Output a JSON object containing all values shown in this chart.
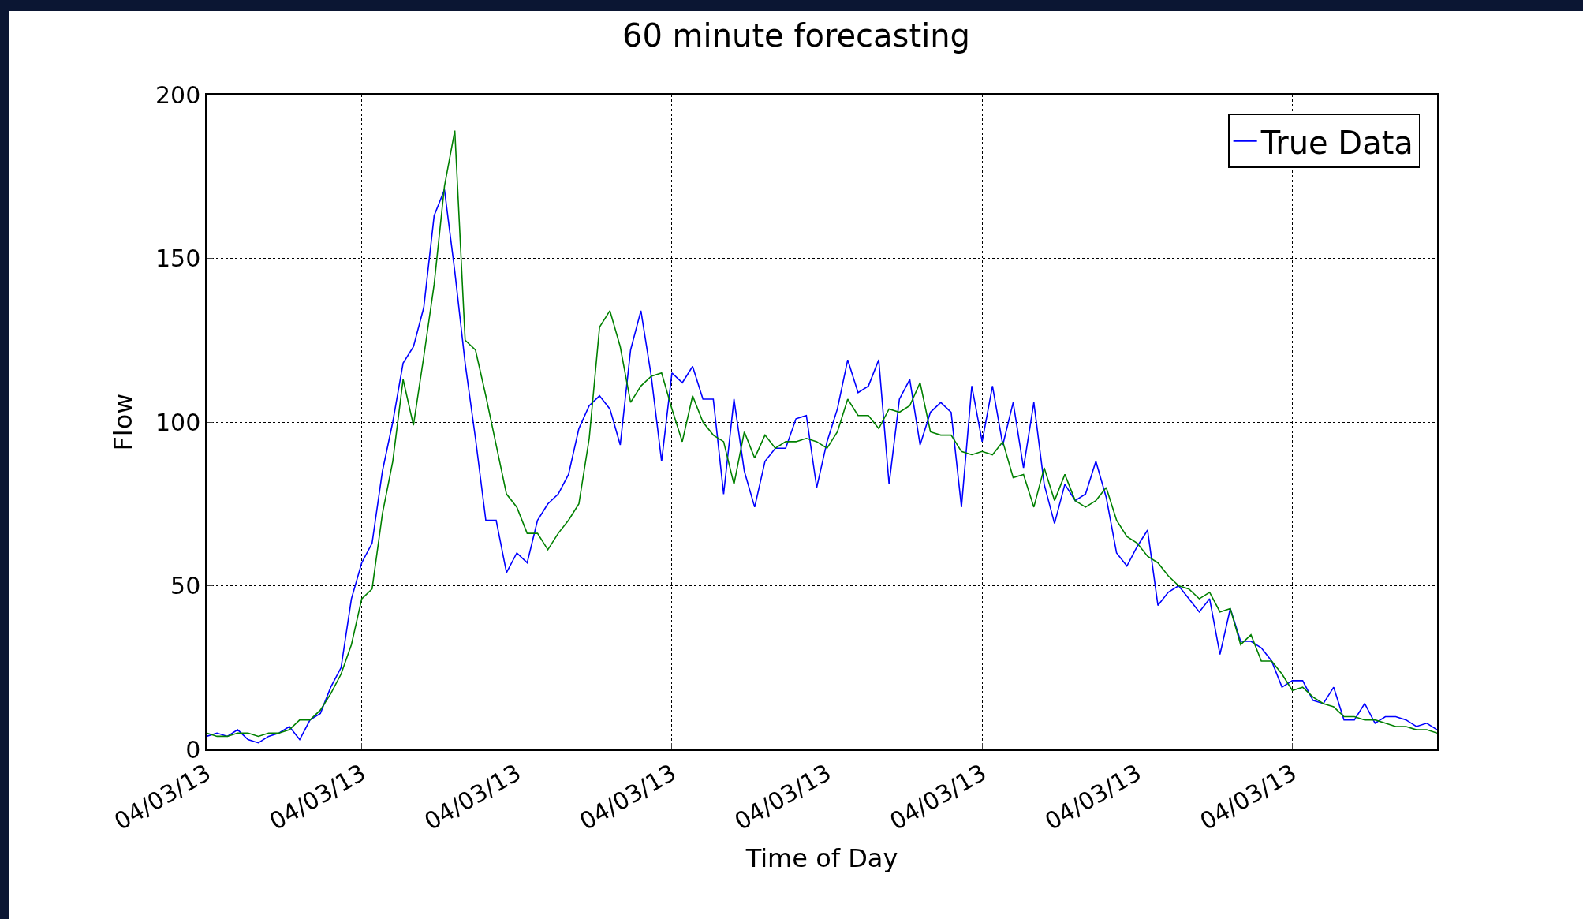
{
  "chart_data": {
    "type": "line",
    "title": "60 minute forecasting",
    "xlabel": "Time of Day",
    "ylabel": "Flow",
    "categories": [
      "04/03/13",
      null,
      null,
      null,
      null,
      null,
      null,
      null,
      null,
      null,
      null,
      null,
      null,
      null,
      null,
      "04/03/13",
      null,
      null,
      null,
      null,
      null,
      null,
      null,
      null,
      null,
      null,
      null,
      null,
      null,
      null,
      "04/03/13",
      null,
      null,
      null,
      null,
      null,
      null,
      null,
      null,
      null,
      null,
      null,
      null,
      null,
      null,
      "04/03/13",
      null,
      null,
      null,
      null,
      null,
      null,
      null,
      null,
      null,
      null,
      null,
      null,
      null,
      null,
      "04/03/13",
      null,
      null,
      null,
      null,
      null,
      null,
      null,
      null,
      null,
      null,
      null,
      null,
      null,
      null,
      "04/03/13",
      null,
      null,
      null,
      null,
      null,
      null,
      null,
      null,
      null,
      null,
      null,
      null,
      null,
      null,
      "04/03/13",
      null,
      null,
      null,
      null,
      null,
      null,
      null,
      null,
      null,
      null,
      null,
      null,
      null,
      null,
      "04/03/13",
      null,
      null,
      null,
      null,
      null,
      null,
      null,
      null,
      null,
      null,
      null,
      null,
      null,
      null
    ],
    "ylim": [
      0,
      200
    ],
    "yticks": [
      0,
      50,
      100,
      150,
      200
    ],
    "grid": true,
    "legend": "top right",
    "series": [
      {
        "name": "True Data",
        "color": "#0000ff",
        "values": [
          4,
          5,
          4,
          6,
          3,
          2,
          4,
          5,
          7,
          3,
          9,
          11,
          19,
          25,
          46,
          57,
          63,
          85,
          100,
          118,
          123,
          135,
          163,
          171,
          146,
          118,
          95,
          70,
          70,
          54,
          60,
          57,
          70,
          75,
          78,
          84,
          98,
          105,
          108,
          104,
          93,
          122,
          134,
          114,
          88,
          115,
          112,
          117,
          107,
          107,
          78,
          107,
          85,
          74,
          88,
          92,
          92,
          101,
          102,
          80,
          94,
          104,
          119,
          109,
          111,
          119,
          81,
          107,
          113,
          93,
          103,
          106,
          103,
          74,
          111,
          94,
          111,
          93,
          106,
          86,
          106,
          81,
          69,
          81,
          76,
          78,
          88,
          77,
          60,
          56,
          62,
          67,
          44,
          48,
          50,
          46,
          42,
          46,
          29,
          43,
          33,
          33,
          31,
          27,
          19,
          21,
          21,
          15,
          14,
          19,
          9,
          9,
          14,
          8,
          10,
          10,
          9,
          7,
          8,
          6
        ]
      },
      {
        "color": "#008000",
        "values": [
          5,
          4,
          4,
          5,
          5,
          4,
          5,
          5,
          6,
          9,
          9,
          12,
          17,
          23,
          32,
          46,
          49,
          72,
          88,
          113,
          99,
          120,
          142,
          172,
          189,
          125,
          122,
          108,
          93,
          78,
          74,
          66,
          66,
          61,
          66,
          70,
          75,
          95,
          129,
          134,
          123,
          106,
          111,
          114,
          115,
          104,
          94,
          108,
          100,
          96,
          94,
          81,
          97,
          89,
          96,
          92,
          94,
          94,
          95,
          94,
          92,
          97,
          107,
          102,
          102,
          98,
          104,
          103,
          105,
          112,
          97,
          96,
          96,
          91,
          90,
          91,
          90,
          94,
          83,
          84,
          74,
          86,
          76,
          84,
          76,
          74,
          76,
          80,
          70,
          65,
          63,
          59,
          57,
          53,
          50,
          49,
          46,
          48,
          42,
          43,
          32,
          35,
          27,
          27,
          23,
          18,
          19,
          16,
          14,
          13,
          10,
          10,
          9,
          9,
          8,
          7,
          7,
          6,
          6,
          5
        ]
      }
    ]
  }
}
